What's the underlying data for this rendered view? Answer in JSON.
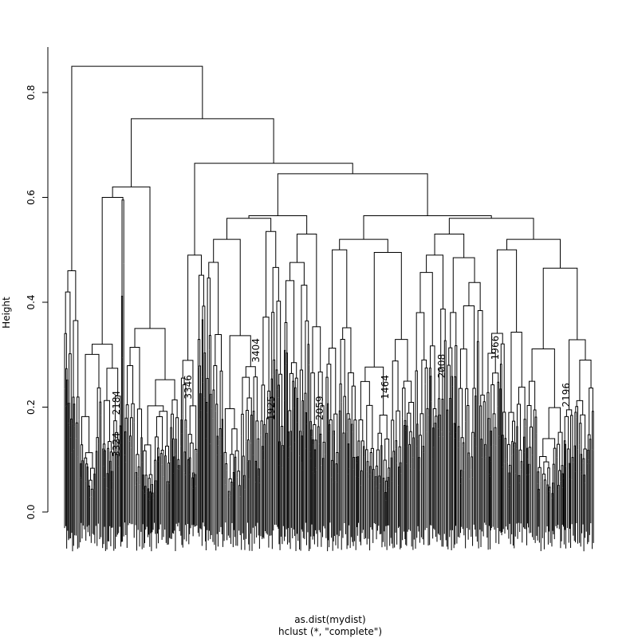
{
  "chart_data": {
    "type": "dendrogram",
    "ylabel": "Height",
    "xlabel": "as.dist(mydist)",
    "sublabel": "hclust (*, \"complete\")",
    "ylim": [
      0,
      0.85
    ],
    "yticks": [
      0.0,
      0.2,
      0.4,
      0.6,
      0.8
    ],
    "ytick_labels": [
      "0.0",
      "0.2",
      "0.4",
      "0.6",
      "0.8"
    ],
    "top_merges": [
      {
        "height": 0.85
      },
      {
        "height": 0.75
      },
      {
        "height": 0.665
      },
      {
        "height": 0.645
      },
      {
        "height": 0.565
      },
      {
        "height": 0.56
      },
      {
        "height": 0.535
      },
      {
        "height": 0.53
      },
      {
        "height": 0.52
      },
      {
        "height": 0.5
      },
      {
        "height": 0.495
      },
      {
        "height": 0.49
      },
      {
        "height": 0.485
      },
      {
        "height": 0.48
      },
      {
        "height": 0.465
      },
      {
        "height": 0.46
      },
      {
        "height": 0.45
      },
      {
        "height": 0.44
      }
    ],
    "visible_leaf_labels": [
      "2184",
      "3324",
      "3346",
      "3404",
      "1925",
      "2059",
      "1464",
      "2008",
      "1966",
      "2196"
    ]
  }
}
